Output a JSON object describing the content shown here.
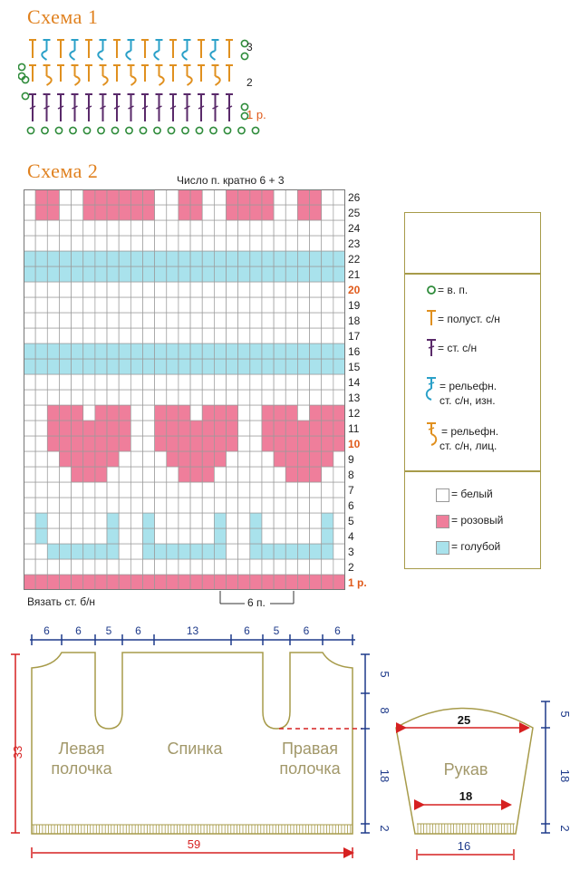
{
  "scheme1": {
    "title": "Схема 1",
    "row_labels": {
      "r3": "3",
      "r2": "2",
      "r1": "1 р."
    }
  },
  "scheme2": {
    "title": "Схема 2",
    "note_top": "Число п. кратно 6 + 3",
    "note_bottom": "Вязать ст. б/н",
    "repeat_label": "6 п.",
    "rows": [
      "26",
      "25",
      "24",
      "23",
      "22",
      "21",
      "20",
      "19",
      "18",
      "17",
      "16",
      "15",
      "14",
      "13",
      "12",
      "11",
      "10",
      "9",
      "8",
      "7",
      "6",
      "5",
      "4",
      "3",
      "2",
      "1 р."
    ],
    "highlight_rows": [
      "20",
      "10",
      "1 р."
    ],
    "grid": {
      "columns": 27,
      "rows": 26,
      "colors": {
        "white": "#ffffff",
        "pink": "#ef7e9b",
        "blue": "#a9e2ec",
        "line": "#9a9a9a"
      },
      "pink_rows_full": [
        1
      ],
      "blue_rows_full": [
        15,
        16,
        21,
        22
      ],
      "pink_squares_rows": [
        25,
        26
      ],
      "pink_squares_cols": [
        2,
        3,
        6,
        7,
        8,
        9,
        10,
        11,
        14,
        15,
        18,
        19,
        20,
        21,
        24,
        25
      ],
      "heart_centers": [
        6,
        15,
        24
      ]
    }
  },
  "legend": {
    "items": [
      {
        "symbol": "chain",
        "text": "= в. п."
      },
      {
        "symbol": "hdc",
        "text": "= полуст. с/н"
      },
      {
        "symbol": "dc",
        "text": "= ст. с/н"
      },
      {
        "symbol": "relief-back",
        "text1": "= рельефн.",
        "text2": "ст. с/н, изн."
      },
      {
        "symbol": "relief-front",
        "text1": "= рельефн.",
        "text2": "ст. с/н, лиц."
      }
    ],
    "colors": [
      {
        "key": "white",
        "text": "= белый"
      },
      {
        "key": "pink",
        "text": "= розовый"
      },
      {
        "key": "blue",
        "text": "= голубой"
      }
    ]
  },
  "pattern": {
    "top_widths": [
      "6",
      "6",
      "5",
      "6",
      "13",
      "6",
      "5",
      "6",
      "6"
    ],
    "total_width": "59",
    "height_total": "33",
    "right_heights": [
      "5",
      "8",
      "18",
      "2"
    ],
    "labels": {
      "left": [
        "Левая",
        "полочка"
      ],
      "back": "Спинка",
      "right": [
        "Правая",
        "полочка"
      ]
    }
  },
  "sleeve": {
    "label": "Рукав",
    "top_width": "25",
    "bottom_width": "18",
    "cuff_width": "16",
    "right_heights": [
      "5",
      "18",
      "2"
    ]
  }
}
